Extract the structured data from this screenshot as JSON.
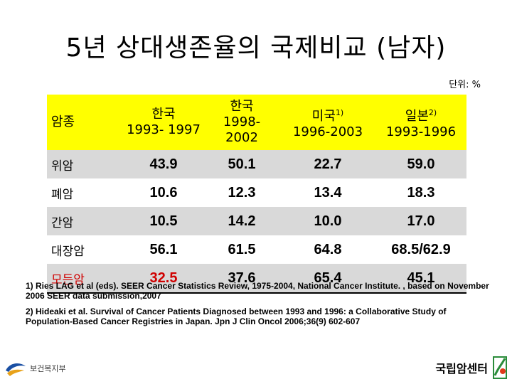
{
  "title": "5년 상대생존율의 국제비교 (남자)",
  "unit": "단위: %",
  "table": {
    "headers": [
      {
        "lines": [
          "암종"
        ]
      },
      {
        "lines": [
          "한국",
          "1993- 1997"
        ]
      },
      {
        "lines": [
          "한국",
          "1998-",
          "2002"
        ]
      },
      {
        "lines": [
          "미국"
        ],
        "sup": "1)",
        "sub": "1996-2003"
      },
      {
        "lines": [
          "일본"
        ],
        "sup": "2)",
        "sub": "1993-1996"
      }
    ],
    "rows": [
      {
        "name": "위암",
        "values": [
          "43.9",
          "50.1",
          "22.7",
          "59.0"
        ]
      },
      {
        "name": "폐암",
        "values": [
          "10.6",
          "12.3",
          "13.4",
          "18.3"
        ]
      },
      {
        "name": "간암",
        "values": [
          "10.5",
          "14.2",
          "10.0",
          "17.0"
        ]
      },
      {
        "name": "대장암",
        "values": [
          "56.1",
          "61.5",
          "64.8",
          "68.5/62.9"
        ]
      },
      {
        "name": "모든암",
        "values": [
          "32.5",
          "37.6",
          "65.4",
          "45.1"
        ]
      }
    ]
  },
  "notes": [
    "1) Ries LAG et al (eds). SEER Cancer Statistics Review, 1975-2004, National Cancer Institute. , based on November 2006 SEER data submission,2007",
    "2) Hideaki et al. Survival of Cancer Patients Diagnosed between 1993 and 1996: a Collaborative Study of Population-Based Cancer Registries in Japan. Jpn J Clin Oncol 2006;36(9) 602-607"
  ],
  "logos": {
    "left": "보건복지부",
    "right": "국립암센터"
  },
  "colors": {
    "header_bg": "#ffff00",
    "stripe_bg": "#d9d9d9",
    "highlight": "#d00000"
  }
}
